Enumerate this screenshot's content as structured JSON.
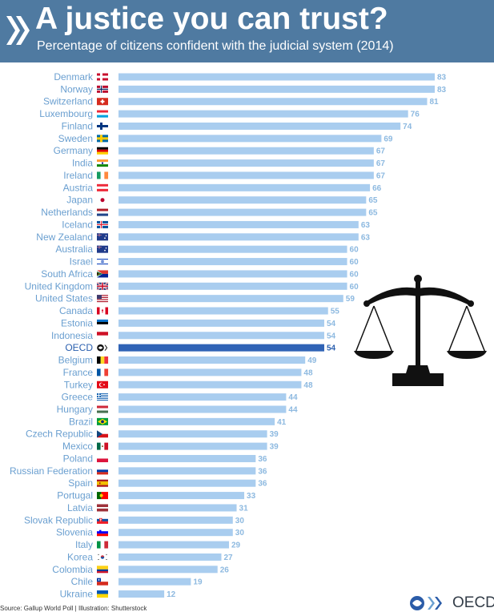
{
  "header": {
    "title": "A justice you can trust?",
    "subtitle": "Percentage of citizens confident with the judicial system (2014)"
  },
  "chart_data": {
    "type": "bar",
    "orientation": "horizontal",
    "title": "A justice you can trust?",
    "subtitle": "Percentage of citizens confident with the judicial system (2014)",
    "highlight": "OECD",
    "colors": {
      "bar": "#a9cdef",
      "highlight_bar": "#2f63b6",
      "label": "#6a9fd0",
      "highlight_label": "#2a5fae"
    },
    "categories": [
      "Denmark",
      "Norway",
      "Switzerland",
      "Luxembourg",
      "Finland",
      "Sweden",
      "Germany",
      "India",
      "Ireland",
      "Austria",
      "Japan",
      "Netherlands",
      "Iceland",
      "New Zealand",
      "Australia",
      "Israel",
      "South Africa",
      "United Kingdom",
      "United States",
      "Canada",
      "Estonia",
      "Indonesia",
      "OECD",
      "Belgium",
      "France",
      "Turkey",
      "Greece",
      "Hungary",
      "Brazil",
      "Czech Republic",
      "Mexico",
      "Poland",
      "Russian Federation",
      "Spain",
      "Portugal",
      "Latvia",
      "Slovak Republic",
      "Slovenia",
      "Italy",
      "Korea",
      "Colombia",
      "Chile",
      "Ukraine"
    ],
    "values": [
      83,
      83,
      81,
      76,
      74,
      69,
      67,
      67,
      67,
      66,
      65,
      65,
      63,
      63,
      60,
      60,
      60,
      60,
      59,
      55,
      54,
      54,
      54,
      49,
      48,
      48,
      44,
      44,
      41,
      39,
      39,
      36,
      36,
      36,
      33,
      31,
      30,
      30,
      29,
      27,
      26,
      19,
      12
    ],
    "flags": [
      "dk-flag",
      "no-flag",
      "ch-flag",
      "lu-flag",
      "fi-flag",
      "se-flag",
      "de-flag",
      "in-flag",
      "ie-flag",
      "at-flag",
      "jp-flag",
      "nl-flag",
      "is-flag",
      "nz-flag",
      "au-flag",
      "il-flag",
      "za-flag",
      "gb-flag",
      "us-flag",
      "ca-flag",
      "ee-flag",
      "id-flag",
      "oecd-logo",
      "be-flag",
      "fr-flag",
      "tr-flag",
      "gr-flag",
      "hu-flag",
      "br-flag",
      "cz-flag",
      "mx-flag",
      "pl-flag",
      "ru-flag",
      "es-flag",
      "pt-flag",
      "lv-flag",
      "sk-flag",
      "si-flag",
      "it-flag",
      "kr-flag",
      "co-flag",
      "cl-flag",
      "ua-flag"
    ]
  },
  "source": "Source: Gallup World Poll | Illustration: Shutterstock",
  "logo": {
    "text": "OECD",
    "icon": "oecd-logo-icon"
  },
  "illustration": "scales-of-justice-icon"
}
